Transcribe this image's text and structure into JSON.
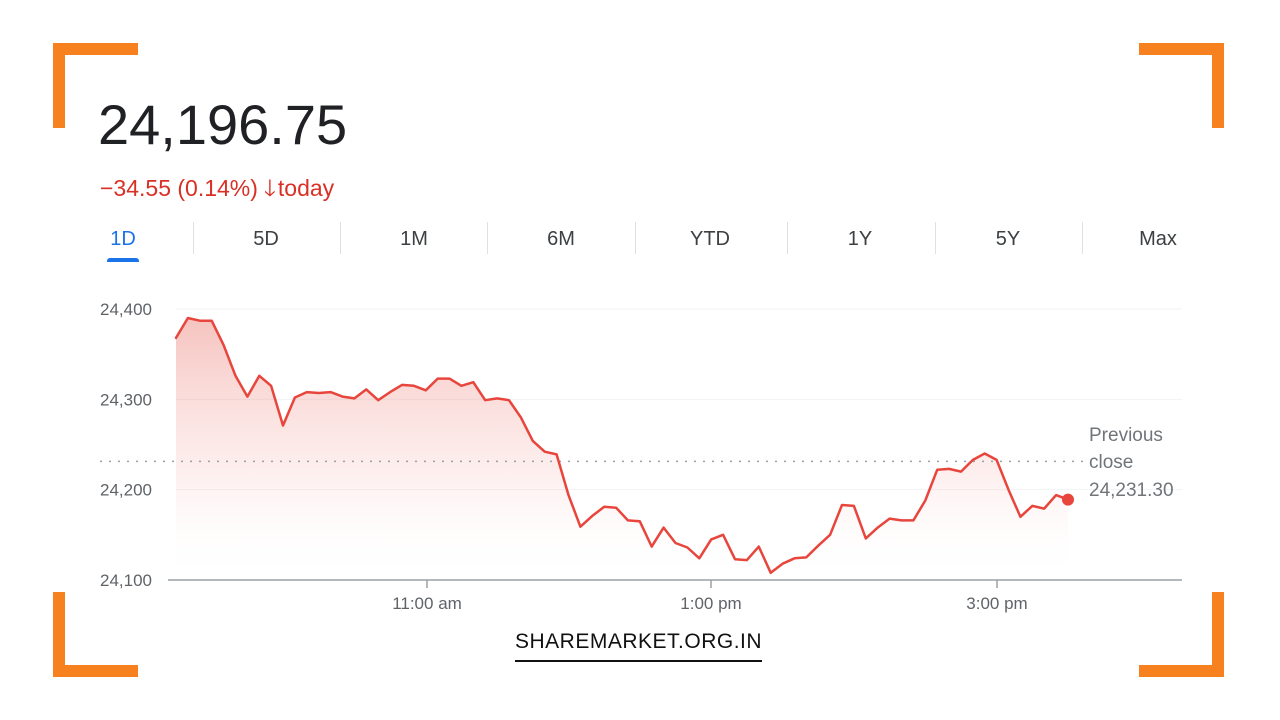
{
  "header": {
    "price": "24,196.75",
    "change": "−34.55 (0.14%)",
    "change_arrow": "🡓",
    "change_period": "today"
  },
  "colors": {
    "accent": "#f7811e",
    "negative": "#d93025",
    "active_tab": "#1a73e8"
  },
  "tabs": [
    {
      "label": "1D",
      "active": true
    },
    {
      "label": "5D",
      "active": false
    },
    {
      "label": "1M",
      "active": false
    },
    {
      "label": "6M",
      "active": false
    },
    {
      "label": "YTD",
      "active": false
    },
    {
      "label": "1Y",
      "active": false
    },
    {
      "label": "5Y",
      "active": false
    },
    {
      "label": "Max",
      "active": false
    }
  ],
  "chart_data": {
    "type": "area",
    "title": "",
    "xlabel": "",
    "ylabel": "",
    "ylim": [
      24100,
      24400
    ],
    "y_ticks": [
      "24,400",
      "24,300",
      "24,200",
      "24,100"
    ],
    "x_ticks": [
      "11:00 am",
      "1:00 pm",
      "3:00 pm"
    ],
    "previous_close": {
      "label_line1": "Previous",
      "label_line2": "close",
      "value_label": "24,231.30",
      "value": 24231.3
    },
    "grid": true,
    "series": [
      {
        "values": [
          24368,
          24390,
          24387,
          24387,
          24360,
          24326,
          24303,
          24326,
          24315,
          24271,
          24302,
          24308,
          24307,
          24308,
          24303,
          24301,
          24311,
          24299,
          24308,
          24316,
          24315,
          24310,
          24323,
          24323,
          24315,
          24319,
          24299,
          24301,
          24299,
          24280,
          24254,
          24242,
          24239,
          24194,
          24159,
          24171,
          24181,
          24180,
          24166,
          24165,
          24137,
          24158,
          24141,
          24136,
          24124,
          24145,
          24150,
          24123,
          24122,
          24137,
          24108,
          24118,
          24124,
          24125,
          24138,
          24150,
          24183,
          24182,
          24146,
          24158,
          24168,
          24166,
          24166,
          24188,
          24222,
          24223,
          24220,
          24233,
          24240,
          24233,
          24200,
          24170,
          24182,
          24179,
          24194,
          24189
        ]
      }
    ]
  },
  "brand": {
    "text": "SHAREMARKET.ORG.IN"
  }
}
